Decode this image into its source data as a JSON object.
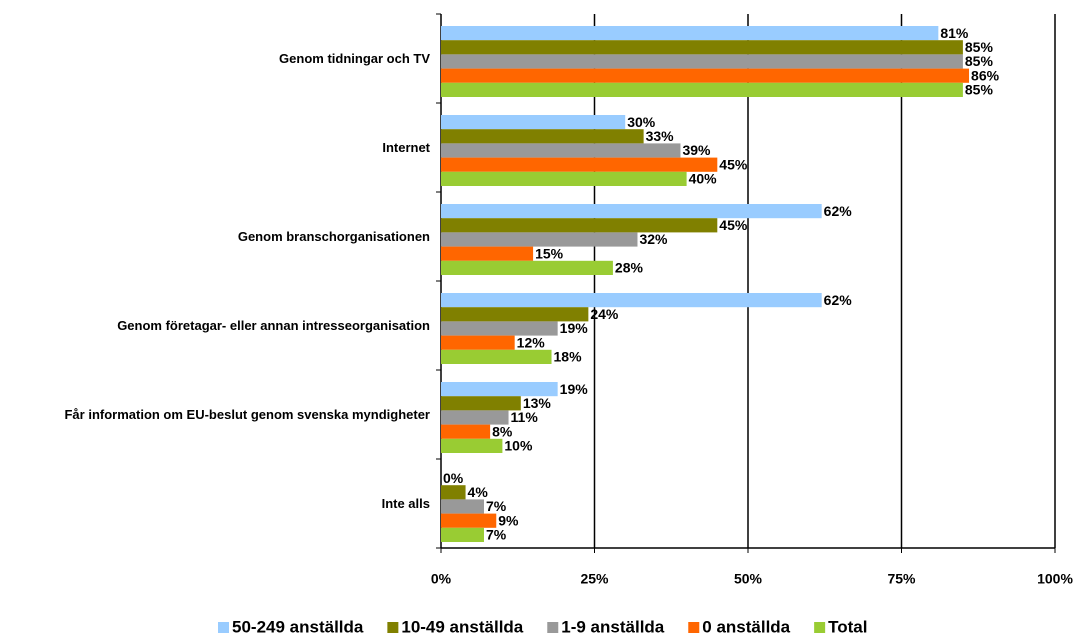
{
  "chart_data": {
    "type": "bar",
    "orientation": "horizontal",
    "categories": [
      "Genom tidningar och TV",
      "Internet",
      "Genom branschorganisationen",
      "Genom företagar- eller annan intresseorganisation",
      "Får information om EU-beslut genom svenska myndigheter",
      "Inte alls"
    ],
    "series": [
      {
        "name": "50-249 anställda",
        "color": "#99ccff",
        "values": [
          81,
          30,
          62,
          62,
          19,
          0
        ],
        "value_labels": [
          "81%",
          "30%",
          "62%",
          "62%",
          "19%",
          "0%"
        ]
      },
      {
        "name": "10-49 anställda",
        "color": "#808000",
        "values": [
          85,
          33,
          45,
          24,
          13,
          4
        ],
        "value_labels": [
          "85%",
          "33%",
          "45%",
          "24%",
          "13%",
          "4%"
        ]
      },
      {
        "name": "1-9 anställda",
        "color": "#999999",
        "values": [
          85,
          39,
          32,
          19,
          11,
          7
        ],
        "value_labels": [
          "85%",
          "39%",
          "32%",
          "19%",
          "11%",
          "7%"
        ]
      },
      {
        "name": "0 anställda",
        "color": "#ff6600",
        "values": [
          86,
          45,
          15,
          12,
          8,
          9
        ],
        "value_labels": [
          "86%",
          "45%",
          "15%",
          "12%",
          "8%",
          "9%"
        ]
      },
      {
        "name": "Total",
        "color": "#99cc33",
        "values": [
          85,
          40,
          28,
          18,
          10,
          7
        ],
        "value_labels": [
          "85%",
          "40%",
          "28%",
          "18%",
          "10%",
          "7%"
        ]
      }
    ],
    "xlim": [
      0,
      100
    ],
    "xticks": [
      {
        "value": 0,
        "label": "0%"
      },
      {
        "value": 25,
        "label": "25%"
      },
      {
        "value": 50,
        "label": "50%"
      },
      {
        "value": 75,
        "label": "75%"
      },
      {
        "value": 100,
        "label": "100%"
      }
    ],
    "grid": true,
    "legend": "bottom"
  }
}
